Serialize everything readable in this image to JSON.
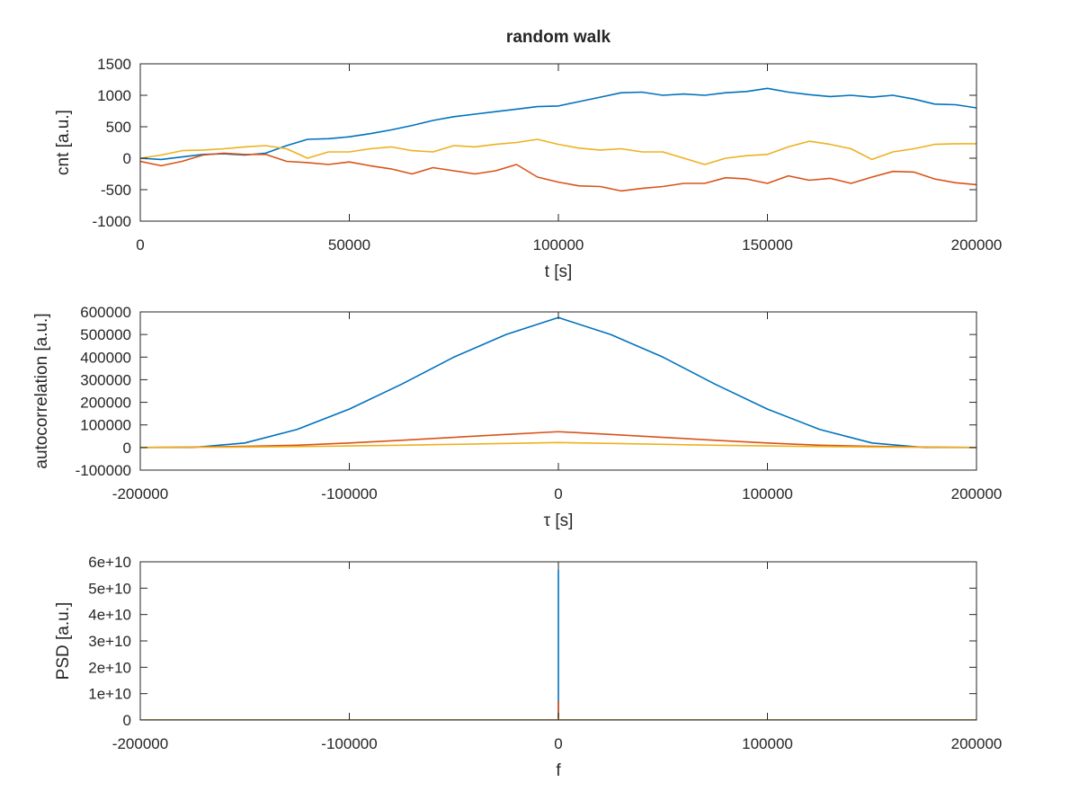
{
  "figure": {
    "background": "#ffffff",
    "axis_color": "#262626",
    "series_colors": [
      "#0072bd",
      "#d95319",
      "#edb120"
    ]
  },
  "chart_data": [
    {
      "type": "line",
      "title": "random walk",
      "xlabel": "t [s]",
      "ylabel": "cnt [a.u.]",
      "xlim": [
        0,
        200000
      ],
      "ylim": [
        -1000,
        1500
      ],
      "xticks": [
        0,
        50000,
        100000,
        150000,
        200000
      ],
      "xtick_labels": [
        "0",
        "50000",
        "100000",
        "150000",
        "200000"
      ],
      "yticks": [
        -1000,
        -500,
        0,
        500,
        1000,
        1500
      ],
      "ytick_labels": [
        "-1000",
        "-500",
        "0",
        "500",
        "1000",
        "1500"
      ],
      "grid": false,
      "series": [
        {
          "color": "#0072bd",
          "x": [
            0,
            5000,
            10000,
            15000,
            20000,
            25000,
            30000,
            35000,
            40000,
            45000,
            50000,
            55000,
            60000,
            65000,
            70000,
            75000,
            80000,
            85000,
            90000,
            95000,
            100000,
            105000,
            110000,
            115000,
            120000,
            125000,
            130000,
            135000,
            140000,
            145000,
            150000,
            155000,
            160000,
            165000,
            170000,
            175000,
            180000,
            185000,
            190000,
            195000,
            200000
          ],
          "y": [
            0,
            -20,
            20,
            60,
            70,
            50,
            80,
            200,
            300,
            310,
            340,
            390,
            450,
            520,
            600,
            660,
            700,
            740,
            780,
            820,
            830,
            900,
            970,
            1040,
            1050,
            1000,
            1020,
            1000,
            1040,
            1060,
            1110,
            1050,
            1010,
            980,
            1000,
            970,
            1000,
            940,
            860,
            850,
            800
          ]
        },
        {
          "color": "#d95319",
          "x": [
            0,
            5000,
            10000,
            15000,
            20000,
            25000,
            30000,
            35000,
            40000,
            45000,
            50000,
            55000,
            60000,
            65000,
            70000,
            75000,
            80000,
            85000,
            90000,
            95000,
            100000,
            105000,
            110000,
            115000,
            120000,
            125000,
            130000,
            135000,
            140000,
            145000,
            150000,
            155000,
            160000,
            165000,
            170000,
            175000,
            180000,
            185000,
            190000,
            195000,
            200000
          ],
          "y": [
            -50,
            -120,
            -50,
            50,
            80,
            60,
            60,
            -50,
            -70,
            -100,
            -60,
            -120,
            -170,
            -250,
            -150,
            -200,
            -250,
            -200,
            -100,
            -300,
            -380,
            -440,
            -450,
            -520,
            -480,
            -450,
            -400,
            -400,
            -310,
            -330,
            -400,
            -280,
            -350,
            -320,
            -400,
            -300,
            -210,
            -220,
            -330,
            -390,
            -420
          ]
        },
        {
          "color": "#edb120",
          "x": [
            0,
            5000,
            10000,
            15000,
            20000,
            25000,
            30000,
            35000,
            40000,
            45000,
            50000,
            55000,
            60000,
            65000,
            70000,
            75000,
            80000,
            85000,
            90000,
            95000,
            100000,
            105000,
            110000,
            115000,
            120000,
            125000,
            130000,
            135000,
            140000,
            145000,
            150000,
            155000,
            160000,
            165000,
            170000,
            175000,
            180000,
            185000,
            190000,
            195000,
            200000
          ],
          "y": [
            0,
            50,
            120,
            130,
            150,
            180,
            200,
            150,
            0,
            100,
            100,
            150,
            180,
            120,
            100,
            200,
            180,
            220,
            250,
            300,
            220,
            160,
            130,
            150,
            100,
            100,
            0,
            -100,
            0,
            40,
            60,
            180,
            270,
            220,
            150,
            -20,
            100,
            150,
            220,
            230,
            230
          ]
        }
      ]
    },
    {
      "type": "line",
      "xlabel": "τ [s]",
      "ylabel": "autocorrelation [a.u.]",
      "xlim": [
        -200000,
        200000
      ],
      "ylim": [
        -100000,
        600000
      ],
      "xticks": [
        -200000,
        -100000,
        0,
        100000,
        200000
      ],
      "xtick_labels": [
        "-200000",
        "-100000",
        "0",
        "100000",
        "200000"
      ],
      "yticks": [
        -100000,
        0,
        100000,
        200000,
        300000,
        400000,
        500000,
        600000
      ],
      "ytick_labels": [
        "-100000",
        "0",
        "100000",
        "200000",
        "300000",
        "400000",
        "500000",
        "600000"
      ],
      "grid": false,
      "series": [
        {
          "color": "#0072bd",
          "x": [
            -200000,
            -175000,
            -150000,
            -125000,
            -100000,
            -75000,
            -50000,
            -25000,
            0,
            25000,
            50000,
            75000,
            100000,
            125000,
            150000,
            175000,
            200000
          ],
          "y": [
            0,
            0,
            20000,
            80000,
            170000,
            280000,
            400000,
            500000,
            575000,
            500000,
            400000,
            280000,
            170000,
            80000,
            20000,
            0,
            0
          ]
        },
        {
          "color": "#d95319",
          "x": [
            -200000,
            -175000,
            -150000,
            -125000,
            -100000,
            -75000,
            -50000,
            -25000,
            0,
            25000,
            50000,
            75000,
            100000,
            125000,
            150000,
            175000,
            200000
          ],
          "y": [
            0,
            2000,
            5000,
            10000,
            20000,
            32000,
            45000,
            58000,
            70000,
            58000,
            45000,
            32000,
            20000,
            10000,
            5000,
            2000,
            0
          ]
        },
        {
          "color": "#edb120",
          "x": [
            -200000,
            -175000,
            -150000,
            -125000,
            -100000,
            -75000,
            -50000,
            -25000,
            0,
            25000,
            50000,
            75000,
            100000,
            125000,
            150000,
            175000,
            200000
          ],
          "y": [
            0,
            1000,
            2000,
            4000,
            7000,
            10000,
            14000,
            18000,
            22000,
            18000,
            14000,
            10000,
            7000,
            4000,
            2000,
            1000,
            0
          ]
        }
      ]
    },
    {
      "type": "line",
      "xlabel": "f",
      "ylabel": "PSD [a.u.]",
      "xlim": [
        -200000,
        200000
      ],
      "ylim": [
        0,
        60000000000
      ],
      "xticks": [
        -200000,
        -100000,
        0,
        100000,
        200000
      ],
      "xtick_labels": [
        "-200000",
        "-100000",
        "0",
        "100000",
        "200000"
      ],
      "yticks": [
        0,
        10000000000,
        20000000000,
        30000000000,
        40000000000,
        50000000000,
        60000000000
      ],
      "ytick_labels": [
        "0",
        "1e+10",
        "2e+10",
        "3e+10",
        "4e+10",
        "5e+10",
        "6e+10"
      ],
      "grid": false,
      "series": [
        {
          "color": "#0072bd",
          "x": [
            -200000,
            -1,
            0,
            1,
            200000
          ],
          "y": [
            0,
            0,
            57000000000,
            0,
            0
          ]
        },
        {
          "color": "#d95319",
          "x": [
            -200000,
            -1,
            0,
            1,
            200000
          ],
          "y": [
            0,
            0,
            7000000000,
            0,
            0
          ]
        },
        {
          "color": "#edb120",
          "x": [
            -200000,
            -1,
            0,
            1,
            200000
          ],
          "y": [
            0,
            0,
            1000000000,
            0,
            0
          ]
        }
      ]
    }
  ]
}
